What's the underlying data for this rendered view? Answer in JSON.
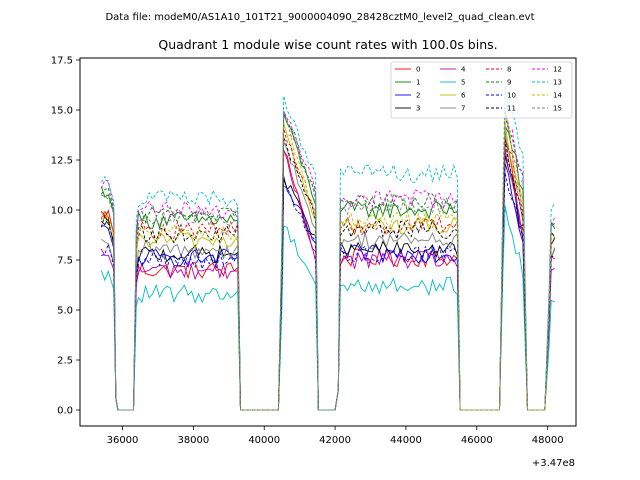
{
  "header": {
    "data_file": "Data file: modeM0/AS1A10_101T21_9000004090_28428cztM0_level2_quad_clean.evt"
  },
  "chart_data": {
    "type": "line",
    "title": "Quadrant 1 module wise count rates with 100.0s bins.",
    "xlabel": "",
    "ylabel": "",
    "x_offset_label": "+3.47e8",
    "xlim": [
      34800,
      48800
    ],
    "ylim": [
      -0.8,
      17.6
    ],
    "x_ticks": [
      36000,
      38000,
      40000,
      42000,
      44000,
      46000,
      48000
    ],
    "x_tick_labels": [
      "36000",
      "38000",
      "40000",
      "42000",
      "44000",
      "46000",
      "48000"
    ],
    "y_ticks": [
      0,
      2.5,
      5,
      7.5,
      10,
      12.5,
      15,
      17.5
    ],
    "y_tick_labels": [
      "0.0",
      "2.5",
      "5.0",
      "7.5",
      "10.0",
      "12.5",
      "15.0",
      "17.5"
    ],
    "legend_position": "top-right",
    "segments": [
      {
        "start": 35400,
        "end": 35750
      },
      {
        "start": 36450,
        "end": 39250
      },
      {
        "start": 40550,
        "end": 41450
      },
      {
        "start": 42150,
        "end": 45450
      },
      {
        "start": 46800,
        "end": 47350
      },
      {
        "start": 48100,
        "end": 48250
      }
    ],
    "gap_value": 0,
    "series": [
      {
        "name": "0",
        "color": "#ff0000",
        "dashed": false,
        "level1": 9.8,
        "level2": 7.0,
        "peak3": 13.2,
        "level4": 7.6,
        "peak5": 14.0,
        "level6": 7.5
      },
      {
        "name": "1",
        "color": "#008000",
        "dashed": false,
        "level1": 11.0,
        "level2": 9.5,
        "peak3": 14.8,
        "level4": 10.0,
        "peak5": 14.5,
        "level6": 9.0
      },
      {
        "name": "2",
        "color": "#0000ff",
        "dashed": false,
        "level1": 9.0,
        "level2": 7.6,
        "peak3": 11.4,
        "level4": 7.8,
        "peak5": 12.5,
        "level6": 8.0
      },
      {
        "name": "3",
        "color": "#000000",
        "dashed": false,
        "level1": 9.2,
        "level2": 7.8,
        "peak3": 11.6,
        "level4": 8.0,
        "peak5": 12.8,
        "level6": 8.5
      },
      {
        "name": "4",
        "color": "#bf00bf",
        "dashed": false,
        "level1": 7.8,
        "level2": 7.0,
        "peak3": 12.8,
        "level4": 7.5,
        "peak5": 13.0,
        "level6": 7.0
      },
      {
        "name": "5",
        "color": "#00bfbf",
        "dashed": false,
        "level1": 6.7,
        "level2": 5.8,
        "peak3": 9.3,
        "level4": 6.2,
        "peak5": 10.0,
        "level6": 5.3
      },
      {
        "name": "6",
        "color": "#bfbf00",
        "dashed": false,
        "level1": 9.5,
        "level2": 8.5,
        "peak3": 14.2,
        "level4": 9.2,
        "peak5": 14.0,
        "level6": 8.5
      },
      {
        "name": "7",
        "color": "#808080",
        "dashed": false,
        "level1": 8.2,
        "level2": 8.0,
        "peak3": 13.6,
        "level4": 8.5,
        "peak5": 13.5,
        "level6": 8.0
      },
      {
        "name": "8",
        "color": "#ff0000",
        "dashed": true,
        "level1": 9.9,
        "level2": 9.0,
        "peak3": 14.0,
        "level4": 9.2,
        "peak5": 14.0,
        "level6": 8.5
      },
      {
        "name": "9",
        "color": "#008000",
        "dashed": true,
        "level1": 11.1,
        "level2": 9.8,
        "peak3": 15.2,
        "level4": 10.4,
        "peak5": 15.0,
        "level6": 9.2
      },
      {
        "name": "10",
        "color": "#0000ff",
        "dashed": true,
        "level1": 8.0,
        "level2": 7.5,
        "peak3": 11.2,
        "level4": 7.8,
        "peak5": 12.0,
        "level6": 7.5
      },
      {
        "name": "11",
        "color": "#000000",
        "dashed": true,
        "level1": 9.4,
        "level2": 8.8,
        "peak3": 13.4,
        "level4": 9.0,
        "peak5": 13.5,
        "level6": 8.5
      },
      {
        "name": "12",
        "color": "#ff00ff",
        "dashed": true,
        "level1": 11.3,
        "level2": 10.0,
        "peak3": 15.0,
        "level4": 10.6,
        "peak5": 15.0,
        "level6": 9.5
      },
      {
        "name": "13",
        "color": "#00bfbf",
        "dashed": true,
        "level1": 11.6,
        "level2": 10.6,
        "peak3": 15.5,
        "level4": 11.8,
        "peak5": 16.0,
        "level6": 10.2
      },
      {
        "name": "14",
        "color": "#bfbf00",
        "dashed": true,
        "level1": 9.7,
        "level2": 8.8,
        "peak3": 14.5,
        "level4": 9.5,
        "peak5": 14.5,
        "level6": 8.5
      },
      {
        "name": "15",
        "color": "#808080",
        "dashed": true,
        "level1": 10.9,
        "level2": 9.6,
        "peak3": 14.6,
        "level4": 10.2,
        "peak5": 14.5,
        "level6": 9.0
      }
    ]
  }
}
